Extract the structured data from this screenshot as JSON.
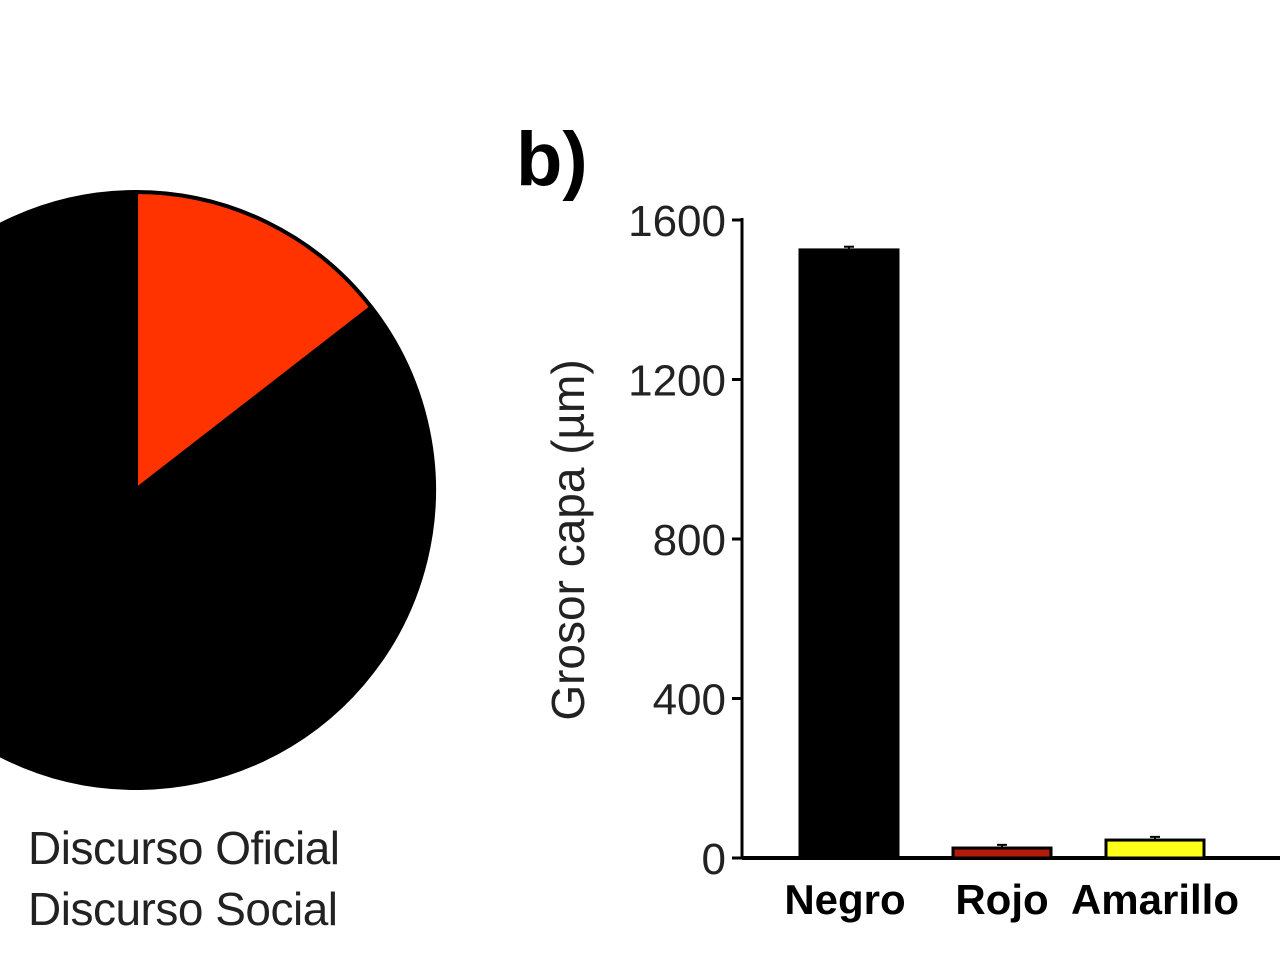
{
  "panel_label": "b)",
  "chart_data": [
    {
      "type": "pie",
      "labels": [
        "Discurso Oficial",
        "Discurso Social"
      ],
      "values": [
        14.5,
        85.5
      ],
      "colors": [
        "#ff3300",
        "#000000"
      ],
      "title": ""
    },
    {
      "type": "bar",
      "title": "",
      "categories": [
        "Negro",
        "Rojo",
        "Amarillo"
      ],
      "values": [
        1525,
        25,
        45
      ],
      "errors": [
        8,
        8,
        8
      ],
      "colors": [
        "#000000",
        "#b21a0a",
        "#ffff1a"
      ],
      "xlabel": "",
      "ylabel": "Grosor capa (µm)",
      "ylim": [
        0,
        1600
      ],
      "yticks": [
        "0",
        "400",
        "800",
        "1200",
        "1600"
      ],
      "grid": false
    }
  ]
}
